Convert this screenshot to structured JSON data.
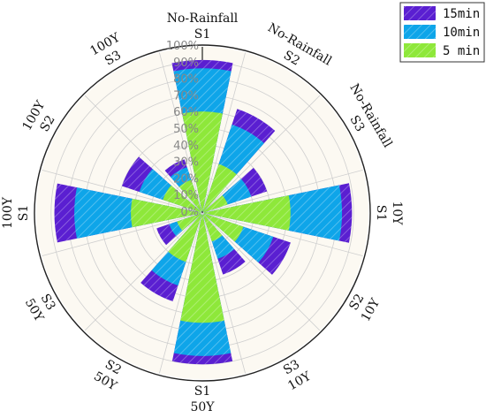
{
  "chart_data": {
    "type": "polar-bar",
    "categories": [
      "No-Rainfall S1",
      "No-Rainfall S2",
      "No-Rainfall S3",
      "10Y S1",
      "10Y S2",
      "10Y S3",
      "50Y S1",
      "50Y S2",
      "50Y S3",
      "100Y S1",
      "100Y S2",
      "100Y S3"
    ],
    "category_lines": [
      [
        "No-Rainfall",
        "S1"
      ],
      [
        "No-Rainfall",
        "S2"
      ],
      [
        "No-Rainfall",
        "S3"
      ],
      [
        "10Y",
        "S1"
      ],
      [
        "10Y",
        "S2"
      ],
      [
        "10Y",
        "S3"
      ],
      [
        "50Y",
        "S1"
      ],
      [
        "50Y",
        "S2"
      ],
      [
        "50Y",
        "S3"
      ],
      [
        "100Y",
        "S1"
      ],
      [
        "100Y",
        "S2"
      ],
      [
        "100Y",
        "S3"
      ]
    ],
    "series": [
      {
        "name": "15min",
        "color": "#5a1fd1",
        "values": [
          91,
          65,
          40,
          89,
          55,
          38,
          90,
          55,
          28,
          88,
          50,
          33
        ]
      },
      {
        "name": "10min",
        "color": "#0ea5e9",
        "values": [
          86,
          55,
          30,
          83,
          44,
          28,
          85,
          45,
          20,
          76,
          39,
          28
        ]
      },
      {
        "name": "5 min",
        "color": "#8ee83a",
        "values": [
          60,
          30,
          15,
          52,
          25,
          17,
          65,
          30,
          15,
          42,
          24,
          20
        ]
      }
    ],
    "radial_axis": {
      "ticks": [
        "0%",
        "10%",
        "20%",
        "30%",
        "40%",
        "50%",
        "60%",
        "70%",
        "80%",
        "90%",
        "100%"
      ],
      "range": [
        0,
        100
      ]
    },
    "legend_position": "top-right",
    "grid": true,
    "plot_background": "#fcf9f2",
    "hatch": "diagonal"
  }
}
